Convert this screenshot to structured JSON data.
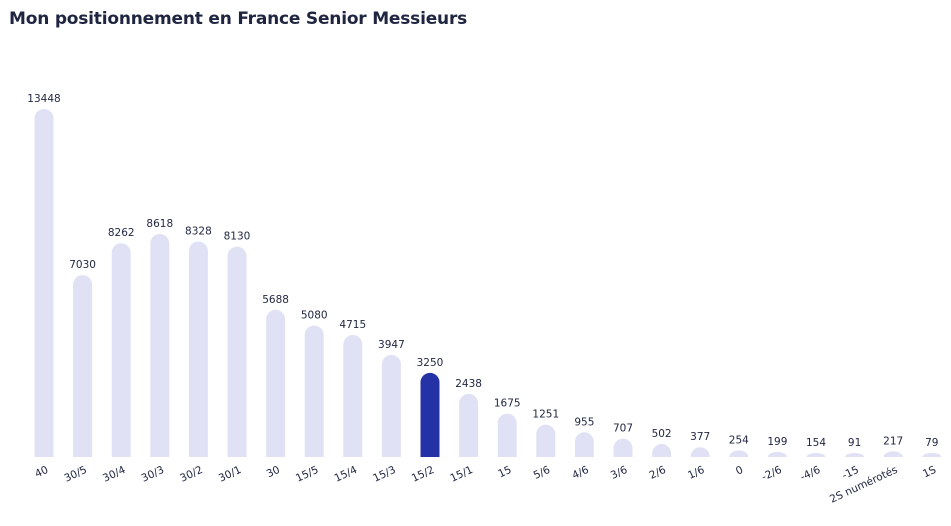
{
  "chart_data": {
    "type": "bar",
    "title": "Mon positionnement en France Senior Messieurs",
    "categories": [
      "40",
      "30/5",
      "30/4",
      "30/3",
      "30/2",
      "30/1",
      "30",
      "15/5",
      "15/4",
      "15/3",
      "15/2",
      "15/1",
      "15",
      "5/6",
      "4/6",
      "3/6",
      "2/6",
      "1/6",
      "0",
      "-2/6",
      "-4/6",
      "-15",
      "2S numérotés",
      "1S"
    ],
    "values": [
      13448,
      7030,
      8262,
      8618,
      8328,
      8130,
      5688,
      5080,
      4715,
      3947,
      3250,
      2438,
      1675,
      1251,
      955,
      707,
      502,
      377,
      254,
      199,
      154,
      91,
      217,
      79
    ],
    "highlight_category": "15/2",
    "xlabel": "",
    "ylabel": "",
    "ylim": [
      0,
      13448
    ],
    "grid": false,
    "legend": "none",
    "colors": {
      "bar": "#e0e1f5",
      "highlight": "#2432a6",
      "text": "#1f2540"
    }
  }
}
